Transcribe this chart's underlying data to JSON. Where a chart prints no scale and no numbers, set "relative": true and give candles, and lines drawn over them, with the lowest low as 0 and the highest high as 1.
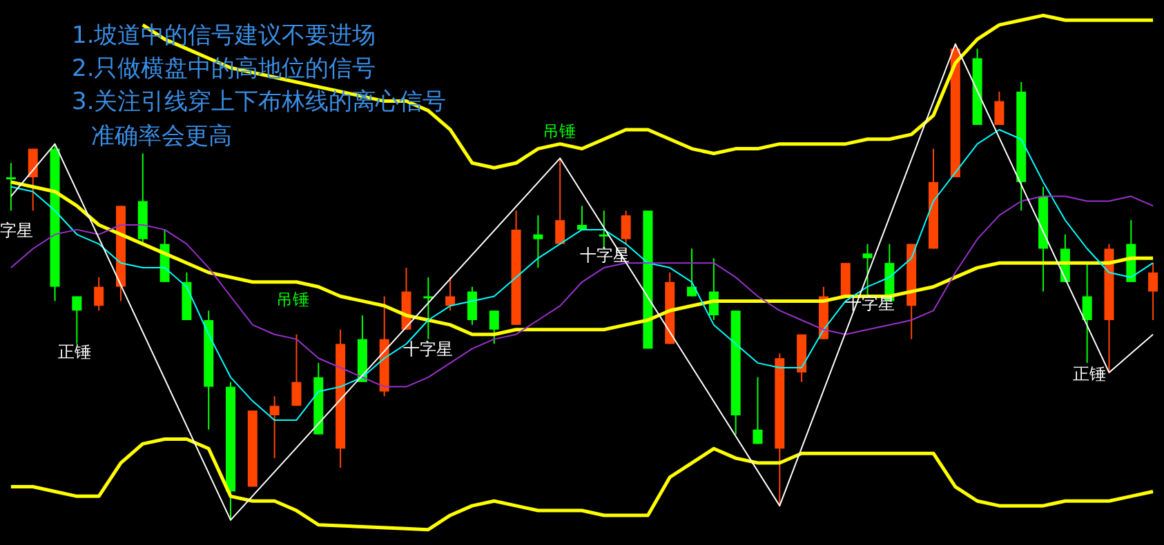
{
  "chart_data": {
    "type": "candlestick",
    "relative": true,
    "tick_labels": false,
    "categories": [
      null,
      null,
      null,
      null,
      null,
      null,
      null,
      null,
      null,
      null,
      null,
      null,
      null,
      null,
      null,
      null,
      null,
      null,
      null,
      null,
      null,
      null,
      null,
      null,
      null,
      null,
      null,
      null,
      null,
      null,
      null,
      null,
      null,
      null,
      null,
      null,
      null,
      null,
      null,
      null,
      null,
      null,
      null,
      null,
      null,
      null,
      null,
      null,
      null,
      null,
      null,
      null,
      null
    ],
    "ohlc": [
      [
        0.72,
        0.75,
        0.65,
        0.72
      ],
      [
        0.72,
        0.78,
        0.65,
        0.78
      ],
      [
        0.78,
        0.79,
        0.46,
        0.49
      ],
      [
        0.47,
        0.47,
        0.37,
        0.44
      ],
      [
        0.45,
        0.51,
        0.44,
        0.49
      ],
      [
        0.49,
        0.66,
        0.46,
        0.66
      ],
      [
        0.67,
        0.77,
        0.58,
        0.59
      ],
      [
        0.58,
        0.61,
        0.5,
        0.5
      ],
      [
        0.5,
        0.52,
        0.42,
        0.42
      ],
      [
        0.42,
        0.44,
        0.19,
        0.28
      ],
      [
        0.28,
        0.29,
        0,
        0.06
      ],
      [
        0.07,
        0.23,
        0.07,
        0.23
      ],
      [
        0.22,
        0.26,
        0.13,
        0.24
      ],
      [
        0.24,
        0.39,
        0.24,
        0.29
      ],
      [
        0.3,
        0.33,
        0.18,
        0.18
      ],
      [
        0.15,
        0.4,
        0.11,
        0.37
      ],
      [
        0.38,
        0.43,
        0.29,
        0.29
      ],
      [
        0.27,
        0.47,
        0.26,
        0.38
      ],
      [
        0.4,
        0.53,
        0.4,
        0.48
      ],
      [
        0.47,
        0.51,
        0.38,
        0.47
      ],
      [
        0.45,
        0.51,
        0.44,
        0.47
      ],
      [
        0.48,
        0.49,
        0.41,
        0.42
      ],
      [
        0.44,
        0.44,
        0.37,
        0.4
      ],
      [
        0.41,
        0.65,
        0.41,
        0.61
      ],
      [
        0.6,
        0.64,
        0.53,
        0.59
      ],
      [
        0.58,
        0.76,
        0.58,
        0.63
      ],
      [
        0.62,
        0.66,
        0.61,
        0.61
      ],
      [
        0.6,
        0.65,
        0.57,
        0.6
      ],
      [
        0.59,
        0.65,
        0.58,
        0.64
      ],
      [
        0.65,
        0.65,
        0.36,
        0.36
      ],
      [
        0.37,
        0.52,
        0.37,
        0.5
      ],
      [
        0.49,
        0.57,
        0.47,
        0.47
      ],
      [
        0.48,
        0.55,
        0.42,
        0.43
      ],
      [
        0.44,
        0.44,
        0.18,
        0.22
      ],
      [
        0.19,
        0.3,
        0.16,
        0.16
      ],
      [
        0.15,
        0.35,
        0.03,
        0.34
      ],
      [
        0.31,
        0.39,
        0.29,
        0.39
      ],
      [
        0.38,
        0.49,
        0.38,
        0.47
      ],
      [
        0.47,
        0.54,
        0.47,
        0.54
      ],
      [
        0.56,
        0.58,
        0.47,
        0.55
      ],
      [
        0.54,
        0.58,
        0.46,
        0.46
      ],
      [
        0.45,
        0.58,
        0.38,
        0.58
      ],
      [
        0.57,
        0.78,
        0.57,
        0.71
      ],
      [
        0.72,
        1,
        0.72,
        0.99
      ],
      [
        0.97,
        0.99,
        0.83,
        0.83
      ],
      [
        0.83,
        0.9,
        0.83,
        0.88
      ],
      [
        0.9,
        0.92,
        0.65,
        0.71
      ],
      [
        0.68,
        0.7,
        0.48,
        0.57
      ],
      [
        0.57,
        0.6,
        0.5,
        0.5
      ],
      [
        0.47,
        0.54,
        0.33,
        0.42
      ],
      [
        0.42,
        0.58,
        0.31,
        0.57
      ],
      [
        0.58,
        0.63,
        0.5,
        0.5
      ],
      [
        0.48,
        0.54,
        0.42,
        0.52
      ]
    ],
    "colors": [
      "#00ff00",
      "#ff4500",
      "#00ff00",
      "#00ff00",
      "#ff4500",
      "#ff4500",
      "#00ff00",
      "#00ff00",
      "#00ff00",
      "#00ff00",
      "#00ff00",
      "#ff4500",
      "#ff4500",
      "#ff4500",
      "#00ff00",
      "#ff4500",
      "#00ff00",
      "#ff4500",
      "#ff4500",
      "#00ff00",
      "#ff4500",
      "#00ff00",
      "#00ff00",
      "#ff4500",
      "#00ff00",
      "#ff4500",
      "#00ff00",
      "#00ff00",
      "#ff4500",
      "#00ff00",
      "#ff4500",
      "#00ff00",
      "#00ff00",
      "#00ff00",
      "#00ff00",
      "#ff4500",
      "#ff4500",
      "#ff4500",
      "#ff4500",
      "#00ff00",
      "#00ff00",
      "#ff4500",
      "#ff4500",
      "#ff4500",
      "#00ff00",
      "#ff4500",
      "#00ff00",
      "#00ff00",
      "#00ff00",
      "#00ff00",
      "#ff4500",
      "#00ff00",
      "#ff4500"
    ],
    "series": [
      {
        "type": "line",
        "color": "#ffff00",
        "values": [
          null,
          null,
          null,
          null,
          null,
          null,
          1.04,
          1.01,
          0.99,
          0.97,
          0.95,
          0.94,
          0.93,
          0.92,
          0.91,
          0.9,
          0.89,
          0.88,
          0.88,
          0.86,
          0.82,
          0.75,
          0.74,
          0.75,
          0.78,
          0.79,
          0.78,
          0.8,
          0.82,
          0.82,
          0.8,
          0.78,
          0.77,
          0.78,
          0.78,
          0.79,
          0.79,
          0.79,
          0.79,
          0.8,
          0.8,
          0.81,
          0.85,
          0.96,
          1.01,
          1.04,
          1.05,
          1.06,
          1.05,
          1.05,
          1.05,
          1.05,
          1.05
        ]
      },
      {
        "type": "line",
        "color": "#ffff00",
        "values": [
          0.71,
          0.7,
          0.69,
          0.66,
          0.62,
          0.6,
          0.58,
          0.56,
          0.54,
          0.52,
          0.51,
          0.5,
          0.5,
          0.5,
          0.49,
          0.47,
          0.46,
          0.45,
          0.43,
          0.42,
          0.41,
          0.39,
          0.39,
          0.4,
          0.4,
          0.4,
          0.4,
          0.4,
          0.41,
          0.42,
          0.44,
          0.45,
          0.46,
          0.46,
          0.46,
          0.46,
          0.46,
          0.46,
          0.47,
          0.47,
          0.47,
          0.48,
          0.49,
          0.51,
          0.53,
          0.54,
          0.54,
          0.54,
          0.54,
          0.54,
          0.54,
          0.55,
          0.55
        ]
      },
      {
        "type": "line",
        "color": "#ffff00",
        "values": [
          0.07,
          0.07,
          0.06,
          0.05,
          0.05,
          0.12,
          0.16,
          0.17,
          0.17,
          0.15,
          0.05,
          0.04,
          0.04,
          0.02,
          -0.01,
          null,
          null,
          null,
          null,
          -0.02,
          0.01,
          0.03,
          0.04,
          0.03,
          0.02,
          0.02,
          0.02,
          0.01,
          0.01,
          0.01,
          0.09,
          0.12,
          0.15,
          0.13,
          0.12,
          0.12,
          0.14,
          0.14,
          0.14,
          0.14,
          0.14,
          0.14,
          0.14,
          0.07,
          0.04,
          0.03,
          0.03,
          0.03,
          0.04,
          0.04,
          0.04,
          0.05,
          0.06
        ]
      },
      {
        "type": "line",
        "color": "#00ffff",
        "values": [
          0.7,
          0.69,
          0.65,
          0.6,
          0.58,
          0.54,
          0.53,
          0.53,
          0.49,
          0.39,
          0.3,
          0.25,
          0.21,
          0.21,
          0.27,
          0.28,
          0.3,
          0.34,
          0.37,
          0.42,
          0.45,
          0.46,
          0.47,
          0.51,
          0.55,
          0.58,
          0.61,
          0.61,
          0.58,
          0.54,
          0.53,
          0.5,
          0.41,
          0.37,
          0.33,
          0.32,
          0.32,
          0.4,
          0.46,
          0.49,
          0.51,
          0.55,
          0.67,
          0.73,
          0.79,
          0.82,
          0.8,
          0.71,
          0.63,
          0.57,
          0.52,
          0.51,
          0.54
        ]
      },
      {
        "type": "line",
        "color": "#9932cc",
        "values": [
          0.53,
          0.57,
          0.6,
          0.61,
          0.6,
          0.62,
          0.62,
          0.61,
          0.58,
          0.53,
          0.47,
          0.41,
          0.39,
          0.38,
          0.34,
          0.32,
          0.3,
          0.28,
          0.28,
          0.3,
          0.33,
          0.36,
          0.38,
          0.39,
          0.42,
          0.45,
          0.5,
          0.53,
          0.54,
          0.54,
          0.54,
          0.54,
          0.54,
          0.51,
          0.47,
          0.44,
          0.42,
          0.4,
          0.39,
          0.4,
          0.41,
          0.42,
          0.44,
          0.52,
          0.59,
          0.64,
          0.67,
          0.68,
          0.68,
          0.67,
          0.67,
          0.68,
          0.66
        ]
      },
      {
        "type": "line",
        "color": "#ffffff",
        "values": [
          0.68,
          null,
          0.79,
          null,
          null,
          null,
          null,
          null,
          null,
          null,
          0,
          null,
          null,
          null,
          null,
          null,
          null,
          null,
          null,
          null,
          null,
          null,
          null,
          null,
          null,
          0.76,
          null,
          null,
          null,
          null,
          null,
          null,
          null,
          null,
          null,
          0.03,
          null,
          null,
          null,
          null,
          null,
          null,
          null,
          1,
          null,
          null,
          null,
          null,
          null,
          null,
          0.31,
          null,
          0.39
        ]
      }
    ],
    "annotations": [
      "1.坡道中的信号建议不要进场",
      "2.只做横盘中的高地位的信号",
      "3.关注引线穿上下布林线的离心信号",
      "准确率会更高",
      "字星",
      "正锤",
      "吊锤",
      "吊锤",
      "十字星",
      "十字星",
      "十字星",
      "正锤"
    ]
  }
}
